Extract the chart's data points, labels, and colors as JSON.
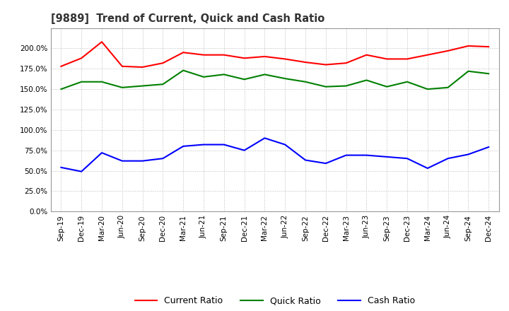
{
  "title": "[9889]  Trend of Current, Quick and Cash Ratio",
  "x_labels": [
    "Sep-19",
    "Dec-19",
    "Mar-20",
    "Jun-20",
    "Sep-20",
    "Dec-20",
    "Mar-21",
    "Jun-21",
    "Sep-21",
    "Dec-21",
    "Mar-22",
    "Jun-22",
    "Sep-22",
    "Dec-22",
    "Mar-23",
    "Jun-23",
    "Sep-23",
    "Dec-23",
    "Mar-24",
    "Jun-24",
    "Sep-24",
    "Dec-24"
  ],
  "current_ratio": [
    1.78,
    1.88,
    2.08,
    1.78,
    1.77,
    1.82,
    1.95,
    1.92,
    1.92,
    1.88,
    1.9,
    1.87,
    1.83,
    1.8,
    1.82,
    1.92,
    1.87,
    1.87,
    1.92,
    1.97,
    2.03,
    2.02
  ],
  "quick_ratio": [
    1.5,
    1.59,
    1.59,
    1.52,
    1.54,
    1.56,
    1.73,
    1.65,
    1.68,
    1.62,
    1.68,
    1.63,
    1.59,
    1.53,
    1.54,
    1.61,
    1.53,
    1.59,
    1.5,
    1.52,
    1.72,
    1.69
  ],
  "cash_ratio": [
    0.54,
    0.49,
    0.72,
    0.62,
    0.62,
    0.65,
    0.8,
    0.82,
    0.82,
    0.75,
    0.9,
    0.82,
    0.63,
    0.59,
    0.69,
    0.69,
    0.67,
    0.65,
    0.53,
    0.65,
    0.7,
    0.79
  ],
  "current_color": "#ff0000",
  "quick_color": "#008000",
  "cash_color": "#0000ff",
  "background_color": "#ffffff",
  "grid_color": "#aaaaaa",
  "ylim": [
    0.0,
    2.25
  ],
  "yticks": [
    0.0,
    0.25,
    0.5,
    0.75,
    1.0,
    1.25,
    1.5,
    1.75,
    2.0
  ],
  "legend_labels": [
    "Current Ratio",
    "Quick Ratio",
    "Cash Ratio"
  ]
}
